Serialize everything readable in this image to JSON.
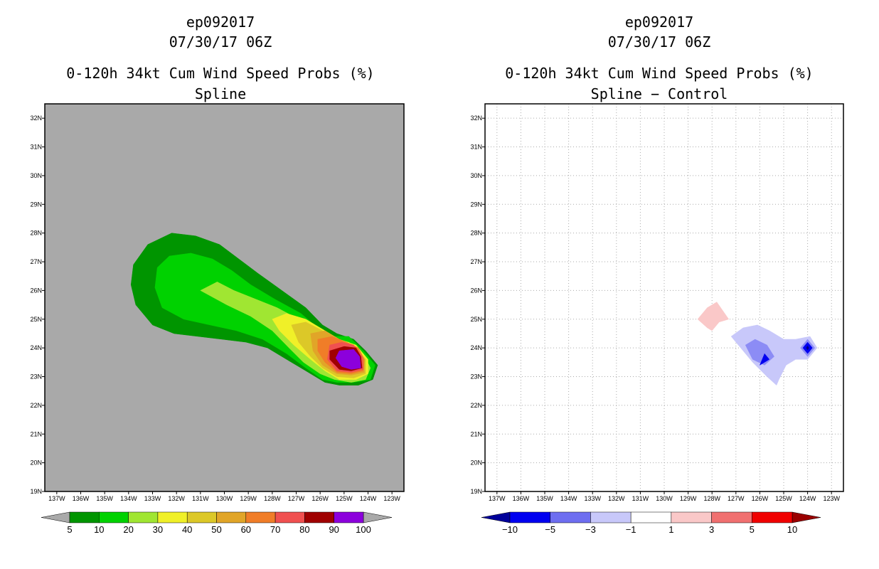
{
  "panels": [
    {
      "storm_id": "ep092017",
      "datetime": "07/30/17 06Z",
      "product": "0-120h 34kt Cum Wind Speed Probs (%)",
      "subtitle": "Spline"
    },
    {
      "storm_id": "ep092017",
      "datetime": "07/30/17 06Z",
      "product": "0-120h 34kt Cum Wind Speed Probs (%)",
      "subtitle": "Spline − Control"
    }
  ],
  "chart_data": [
    {
      "type": "filled-contour-map",
      "title": "0-120h 34kt Cum Wind Speed Probs (%) — Spline",
      "background_color": "#a9a9a9",
      "grid": false,
      "x_ticks": [
        "137W",
        "136W",
        "135W",
        "134W",
        "133W",
        "132W",
        "131W",
        "130W",
        "129W",
        "128W",
        "127W",
        "126W",
        "125W",
        "124W",
        "123W"
      ],
      "y_ticks": [
        "19N",
        "20N",
        "21N",
        "22N",
        "23N",
        "24N",
        "25N",
        "26N",
        "27N",
        "28N",
        "29N",
        "30N",
        "31N",
        "32N"
      ],
      "xlim": [
        -137.5,
        -122.5
      ],
      "ylim": [
        19,
        32.5
      ],
      "colorbar": {
        "labels": [
          "5",
          "10",
          "20",
          "30",
          "40",
          "50",
          "60",
          "70",
          "80",
          "90",
          "100"
        ],
        "colors": [
          "#009500",
          "#00d200",
          "#a0e632",
          "#f0f028",
          "#dcc828",
          "#e1a528",
          "#f07d28",
          "#f05050",
          "#a00000",
          "#8c00dc"
        ],
        "extend_colors": [
          "#a9a9a9",
          "#a9a9a9"
        ]
      },
      "contours": [
        {
          "level": 5,
          "color": "#009500",
          "points": [
            [
              -133.9,
              26.2
            ],
            [
              -133.8,
              26.9
            ],
            [
              -133.2,
              27.6
            ],
            [
              -132.2,
              28.0
            ],
            [
              -131.2,
              27.9
            ],
            [
              -130.2,
              27.6
            ],
            [
              -129.4,
              27.1
            ],
            [
              -128.6,
              26.6
            ],
            [
              -127.6,
              26.0
            ],
            [
              -126.6,
              25.4
            ],
            [
              -125.9,
              24.8
            ],
            [
              -125.3,
              24.5
            ],
            [
              -124.6,
              24.3
            ],
            [
              -124.1,
              23.9
            ],
            [
              -123.6,
              23.4
            ],
            [
              -123.8,
              22.9
            ],
            [
              -124.4,
              22.7
            ],
            [
              -125.2,
              22.7
            ],
            [
              -125.8,
              22.8
            ],
            [
              -126.6,
              23.2
            ],
            [
              -127.4,
              23.6
            ],
            [
              -128.2,
              24.0
            ],
            [
              -129.1,
              24.2
            ],
            [
              -130.1,
              24.3
            ],
            [
              -131.1,
              24.4
            ],
            [
              -132.1,
              24.5
            ],
            [
              -133.0,
              24.8
            ],
            [
              -133.7,
              25.5
            ]
          ]
        },
        {
          "level": 10,
          "color": "#00d200",
          "points": [
            [
              -132.9,
              26.1
            ],
            [
              -132.8,
              26.8
            ],
            [
              -132.3,
              27.2
            ],
            [
              -131.4,
              27.3
            ],
            [
              -130.5,
              27.1
            ],
            [
              -129.7,
              26.7
            ],
            [
              -128.9,
              26.2
            ],
            [
              -127.9,
              25.7
            ],
            [
              -126.8,
              25.2
            ],
            [
              -126.1,
              24.7
            ],
            [
              -125.4,
              24.4
            ],
            [
              -124.8,
              24.4
            ],
            [
              -124.2,
              23.9
            ],
            [
              -123.7,
              23.4
            ],
            [
              -123.9,
              22.9
            ],
            [
              -124.6,
              22.8
            ],
            [
              -125.3,
              22.8
            ],
            [
              -125.9,
              22.9
            ],
            [
              -126.6,
              23.3
            ],
            [
              -127.4,
              23.8
            ],
            [
              -128.4,
              24.3
            ],
            [
              -129.5,
              24.6
            ],
            [
              -130.6,
              24.8
            ],
            [
              -131.7,
              25.0
            ],
            [
              -132.6,
              25.4
            ]
          ]
        },
        {
          "level": 20,
          "color": "#a0e632",
          "points": [
            [
              -131.0,
              26.0
            ],
            [
              -130.3,
              26.3
            ],
            [
              -129.6,
              26.0
            ],
            [
              -128.7,
              25.7
            ],
            [
              -127.8,
              25.4
            ],
            [
              -126.9,
              25.0
            ],
            [
              -126.1,
              24.6
            ],
            [
              -125.4,
              24.3
            ],
            [
              -124.8,
              24.2
            ],
            [
              -124.2,
              23.8
            ],
            [
              -123.9,
              23.3
            ],
            [
              -124.1,
              22.9
            ],
            [
              -124.7,
              22.8
            ],
            [
              -125.4,
              22.9
            ],
            [
              -126.0,
              23.1
            ],
            [
              -126.7,
              23.5
            ],
            [
              -127.3,
              24.0
            ],
            [
              -128.0,
              24.6
            ],
            [
              -128.9,
              25.1
            ],
            [
              -129.9,
              25.5
            ]
          ]
        },
        {
          "level": 30,
          "color": "#f0f028",
          "points": [
            [
              -128.0,
              25.0
            ],
            [
              -127.4,
              25.2
            ],
            [
              -126.6,
              25.0
            ],
            [
              -125.8,
              24.6
            ],
            [
              -125.2,
              24.3
            ],
            [
              -124.5,
              24.1
            ],
            [
              -124.0,
              23.6
            ],
            [
              -124.0,
              23.1
            ],
            [
              -124.5,
              22.9
            ],
            [
              -125.2,
              22.9
            ],
            [
              -125.8,
              23.2
            ],
            [
              -126.4,
              23.6
            ],
            [
              -127.1,
              24.1
            ],
            [
              -127.7,
              24.6
            ]
          ]
        },
        {
          "level": 40,
          "color": "#dcc828",
          "points": [
            [
              -127.2,
              24.8
            ],
            [
              -126.6,
              24.9
            ],
            [
              -125.9,
              24.6
            ],
            [
              -125.3,
              24.3
            ],
            [
              -124.6,
              24.1
            ],
            [
              -124.1,
              23.6
            ],
            [
              -124.1,
              23.1
            ],
            [
              -124.6,
              22.95
            ],
            [
              -125.3,
              23.0
            ],
            [
              -125.9,
              23.3
            ],
            [
              -126.4,
              23.7
            ],
            [
              -126.9,
              24.2
            ]
          ]
        },
        {
          "level": 50,
          "color": "#e1a528",
          "points": [
            [
              -126.4,
              24.5
            ],
            [
              -125.8,
              24.6
            ],
            [
              -125.2,
              24.3
            ],
            [
              -124.6,
              24.1
            ],
            [
              -124.15,
              23.6
            ],
            [
              -124.15,
              23.15
            ],
            [
              -124.7,
              23.05
            ],
            [
              -125.3,
              23.1
            ],
            [
              -125.9,
              23.4
            ],
            [
              -126.3,
              23.9
            ]
          ]
        },
        {
          "level": 60,
          "color": "#f07d28",
          "points": [
            [
              -126.1,
              24.3
            ],
            [
              -125.5,
              24.4
            ],
            [
              -124.9,
              24.2
            ],
            [
              -124.4,
              24.0
            ],
            [
              -124.15,
              23.6
            ],
            [
              -124.2,
              23.2
            ],
            [
              -124.7,
              23.1
            ],
            [
              -125.3,
              23.15
            ],
            [
              -125.8,
              23.5
            ],
            [
              -126.1,
              23.9
            ]
          ]
        },
        {
          "level": 70,
          "color": "#f05050",
          "points": [
            [
              -125.6,
              24.1
            ],
            [
              -125.1,
              24.2
            ],
            [
              -124.6,
              24.1
            ],
            [
              -124.25,
              23.7
            ],
            [
              -124.2,
              23.25
            ],
            [
              -124.7,
              23.15
            ],
            [
              -125.3,
              23.2
            ],
            [
              -125.7,
              23.6
            ]
          ]
        },
        {
          "level": 80,
          "color": "#a00000",
          "points": [
            [
              -125.6,
              23.9
            ],
            [
              -125.0,
              24.05
            ],
            [
              -124.5,
              24.0
            ],
            [
              -124.3,
              23.7
            ],
            [
              -124.25,
              23.3
            ],
            [
              -124.7,
              23.2
            ],
            [
              -125.2,
              23.25
            ],
            [
              -125.6,
              23.6
            ]
          ]
        },
        {
          "level": 90,
          "color": "#8c00dc",
          "points": [
            [
              -125.2,
              23.9
            ],
            [
              -124.6,
              23.95
            ],
            [
              -124.35,
              23.7
            ],
            [
              -124.3,
              23.3
            ],
            [
              -124.7,
              23.25
            ],
            [
              -125.1,
              23.35
            ],
            [
              -125.35,
              23.65
            ]
          ]
        }
      ]
    },
    {
      "type": "filled-contour-map",
      "title": "0-120h 34kt Cum Wind Speed Probs (%) — Spline − Control",
      "background_color": "#ffffff",
      "grid": true,
      "x_ticks": [
        "137W",
        "136W",
        "135W",
        "134W",
        "133W",
        "132W",
        "131W",
        "130W",
        "129W",
        "128W",
        "127W",
        "126W",
        "125W",
        "124W",
        "123W"
      ],
      "y_ticks": [
        "19N",
        "20N",
        "21N",
        "22N",
        "23N",
        "24N",
        "25N",
        "26N",
        "27N",
        "28N",
        "29N",
        "30N",
        "31N",
        "32N"
      ],
      "xlim": [
        -137.5,
        -122.5
      ],
      "ylim": [
        19,
        32.5
      ],
      "colorbar": {
        "labels": [
          "−10",
          "−5",
          "−3",
          "−1",
          "1",
          "3",
          "5",
          "10"
        ],
        "colors": [
          "#0000f0",
          "#6e6ef0",
          "#c8c8fa",
          "#ffffff",
          "#fac8c8",
          "#f07070",
          "#f00000"
        ],
        "extend_colors": [
          "#00009a",
          "#9a0000"
        ]
      },
      "contours": [
        {
          "level": 1,
          "color": "#fac8c8",
          "points": [
            [
              -128.6,
              25.0
            ],
            [
              -128.2,
              25.4
            ],
            [
              -127.8,
              25.6
            ],
            [
              -127.3,
              25.0
            ],
            [
              -127.7,
              24.9
            ],
            [
              -128.0,
              24.6
            ],
            [
              -128.2,
              24.7
            ]
          ]
        },
        {
          "level": -1,
          "color": "#c8c8fa",
          "points": [
            [
              -127.2,
              24.4
            ],
            [
              -126.7,
              24.7
            ],
            [
              -126.1,
              24.8
            ],
            [
              -125.6,
              24.6
            ],
            [
              -125.0,
              24.3
            ],
            [
              -124.5,
              24.3
            ],
            [
              -123.9,
              24.4
            ],
            [
              -123.6,
              24.0
            ],
            [
              -124.0,
              23.6
            ],
            [
              -124.5,
              23.6
            ],
            [
              -124.9,
              23.4
            ],
            [
              -125.2,
              22.9
            ],
            [
              -125.3,
              22.7
            ],
            [
              -125.7,
              23.0
            ],
            [
              -126.3,
              23.5
            ],
            [
              -126.8,
              24.0
            ]
          ]
        },
        {
          "level": -3,
          "color": "#8c8cf5",
          "points": [
            [
              -126.6,
              24.1
            ],
            [
              -126.2,
              24.3
            ],
            [
              -125.7,
              24.1
            ],
            [
              -125.4,
              23.7
            ],
            [
              -125.8,
              23.4
            ],
            [
              -126.3,
              23.6
            ]
          ]
        },
        {
          "level": -3,
          "color": "#8c8cf5",
          "points": [
            [
              -124.3,
              24.0
            ],
            [
              -124.0,
              24.3
            ],
            [
              -123.7,
              24.0
            ],
            [
              -124.0,
              23.7
            ]
          ]
        },
        {
          "level": -5,
          "color": "#0000f0",
          "points": [
            [
              -126.0,
              23.4
            ],
            [
              -125.8,
              23.8
            ],
            [
              -125.6,
              23.6
            ]
          ]
        },
        {
          "level": -5,
          "color": "#0000f0",
          "points": [
            [
              -124.2,
              24.0
            ],
            [
              -124.0,
              24.2
            ],
            [
              -123.8,
              24.0
            ],
            [
              -124.0,
              23.8
            ]
          ]
        },
        {
          "level": -10,
          "color": "#000080",
          "points": [
            [
              -124.05,
              24.0
            ],
            [
              -124.0,
              24.07
            ],
            [
              -123.95,
              24.0
            ],
            [
              -124.0,
              23.93
            ]
          ]
        }
      ]
    }
  ]
}
